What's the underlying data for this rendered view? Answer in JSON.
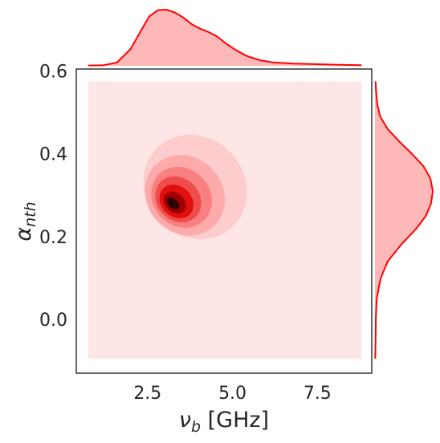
{
  "chart_data": {
    "type": "kde-joint",
    "xlabel": "ν_b [GHz]",
    "ylabel": "α_nth",
    "xlim": [
      0.4,
      9.1
    ],
    "ylim": [
      -0.13,
      0.605
    ],
    "x_ticks": [
      2.5,
      5.0,
      7.5
    ],
    "x_tick_labels": [
      "2.5",
      "5.0",
      "7.5"
    ],
    "y_ticks": [
      0.0,
      0.2,
      0.4,
      0.6
    ],
    "y_tick_labels": [
      "0.0",
      "0.2",
      "0.4",
      "0.6"
    ],
    "grid": false,
    "colormap": "Reds",
    "line_color": "#ff0000",
    "fill_color": "#ffb8b8",
    "background_region": {
      "x": [
        0.75,
        8.8
      ],
      "y": [
        -0.095,
        0.575
      ],
      "color": "#ffe6e6"
    },
    "contour_levels": [
      {
        "level": 1,
        "color": "#fdcdcd",
        "center": [
          3.9,
          0.32
        ],
        "semi_major": 2.35,
        "semi_minor": 0.22,
        "angle_deg": 42
      },
      {
        "level": 2,
        "color": "#fcaaaa",
        "center": [
          3.6,
          0.3
        ],
        "semi_major": 1.8,
        "semi_minor": 0.17,
        "angle_deg": 43
      },
      {
        "level": 3,
        "color": "#f88080",
        "center": [
          3.5,
          0.295
        ],
        "semi_major": 1.35,
        "semi_minor": 0.13,
        "angle_deg": 44
      },
      {
        "level": 4,
        "color": "#f04c4c",
        "center": [
          3.4,
          0.29
        ],
        "semi_major": 1.0,
        "semi_minor": 0.1,
        "angle_deg": 45
      },
      {
        "level": 5,
        "color": "#e01010",
        "center": [
          3.35,
          0.285
        ],
        "semi_major": 0.72,
        "semi_minor": 0.075,
        "angle_deg": 46
      },
      {
        "level": 6,
        "color": "#a00000",
        "center": [
          3.3,
          0.282
        ],
        "semi_major": 0.45,
        "semi_minor": 0.05,
        "angle_deg": 47
      },
      {
        "level": 7,
        "color": "#300000",
        "center": [
          3.25,
          0.28
        ],
        "semi_major": 0.22,
        "semi_minor": 0.028,
        "angle_deg": 48
      }
    ],
    "marginal_x": {
      "x": [
        0.75,
        1.2,
        1.6,
        2.0,
        2.3,
        2.55,
        2.8,
        3.05,
        3.3,
        3.55,
        3.8,
        4.05,
        4.3,
        4.55,
        4.8,
        5.1,
        5.4,
        5.8,
        6.2,
        6.8,
        7.4,
        8.0,
        8.8
      ],
      "density": [
        0.005,
        0.01,
        0.06,
        0.3,
        0.62,
        0.88,
        0.99,
        1.0,
        0.95,
        0.86,
        0.74,
        0.66,
        0.6,
        0.52,
        0.4,
        0.28,
        0.18,
        0.1,
        0.06,
        0.04,
        0.03,
        0.02,
        0.01
      ]
    },
    "marginal_y": {
      "y": [
        -0.095,
        -0.05,
        0.0,
        0.05,
        0.1,
        0.14,
        0.18,
        0.22,
        0.25,
        0.28,
        0.31,
        0.34,
        0.37,
        0.4,
        0.43,
        0.46,
        0.49,
        0.52,
        0.55,
        0.575
      ],
      "density": [
        0.005,
        0.01,
        0.015,
        0.03,
        0.1,
        0.22,
        0.45,
        0.72,
        0.88,
        0.97,
        1.0,
        0.96,
        0.84,
        0.64,
        0.42,
        0.22,
        0.09,
        0.04,
        0.02,
        0.01
      ]
    }
  }
}
